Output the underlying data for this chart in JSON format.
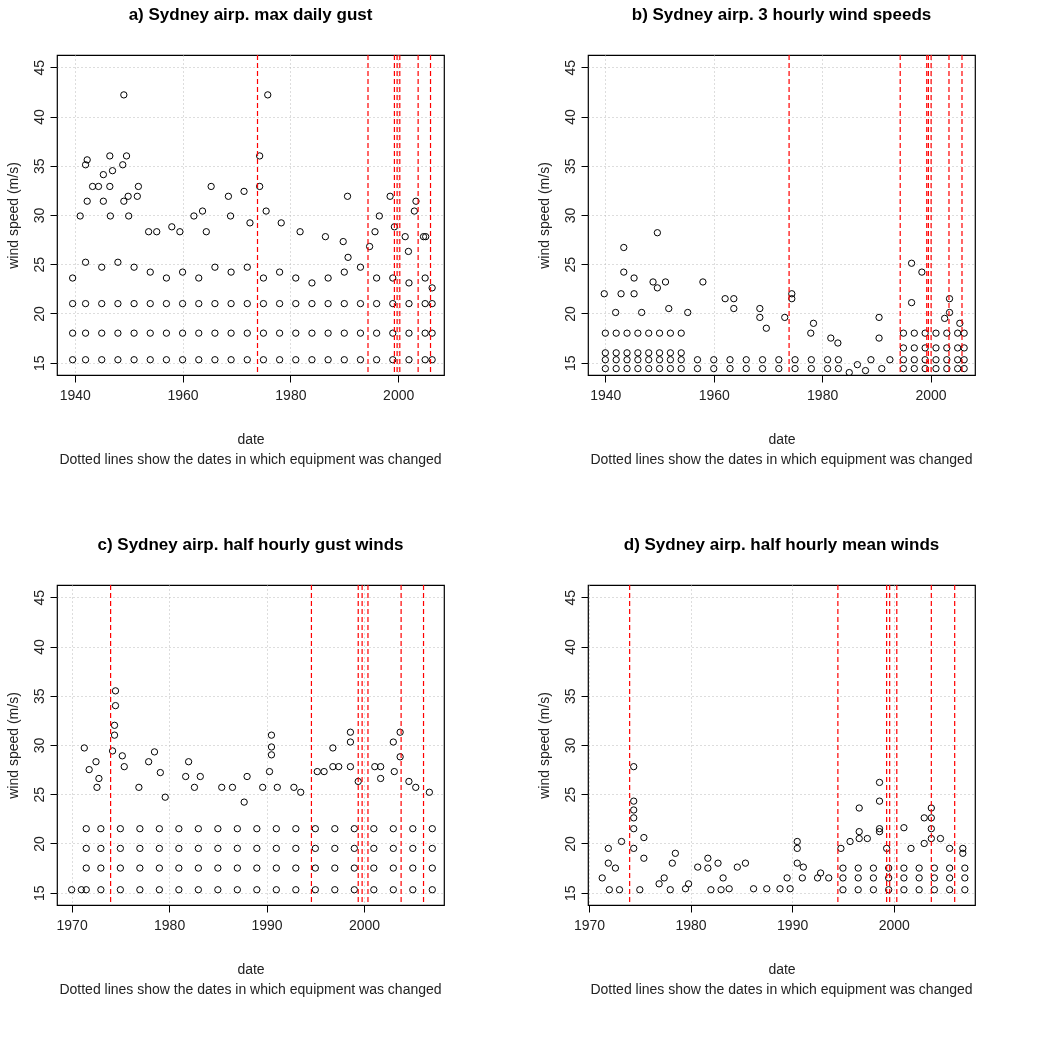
{
  "chart_data": [
    {
      "type": "scatter",
      "title": "a) Sydney airp. max daily gust",
      "xlabel": "date",
      "ylabel": "wind speed (m/s)",
      "annotations": [
        "Dotted lines show the dates in which equipment was changed"
      ],
      "marker": "circle",
      "grid": true,
      "xlim": [
        1936.7,
        2008.5
      ],
      "ylim": [
        13.75,
        46.25
      ],
      "xticks": [
        1940,
        1960,
        1980,
        2000
      ],
      "yticks": [
        15,
        20,
        25,
        30,
        35,
        40,
        45
      ],
      "x": [
        1949.1,
        1975.8,
        1942.3,
        1942.0,
        1946.5,
        1949.6,
        1974.3,
        1947.0,
        1948.9,
        1945.3,
        1943.3,
        1944.4,
        1946.5,
        1951.8,
        1965.3,
        1974.3,
        1945.3,
        1949.9,
        1951.6,
        1942.3,
        1949.1,
        1968.5,
        1971.4,
        1990.6,
        1998.5,
        2003.3,
        1941.0,
        1946.6,
        1950.0,
        1962.1,
        1963.7,
        1968.9,
        1975.5,
        1996.5,
        2003.0,
        1953.7,
        1955.2,
        1958.0,
        1959.5,
        1964.4,
        1972.5,
        1978.3,
        1981.8,
        1986.5,
        1995.7,
        1999.3,
        2001.3,
        2004.7,
        2005.1,
        1989.8,
        1990.7,
        1994.7,
        2001.9,
        1939.6,
        1939.6,
        1939.6,
        1939.6,
        1942,
        1942,
        1942,
        1942,
        1945,
        1945,
        1945,
        1945,
        1948,
        1948,
        1948,
        1948,
        1951,
        1951,
        1951,
        1951,
        1954,
        1954,
        1954,
        1954,
        1957,
        1957,
        1957,
        1957,
        1960,
        1960,
        1960,
        1960,
        1963,
        1963,
        1963,
        1963,
        1966,
        1966,
        1966,
        1966,
        1969,
        1969,
        1969,
        1969,
        1972,
        1972,
        1972,
        1972,
        1975,
        1975,
        1975,
        1975,
        1978,
        1978,
        1978,
        1978,
        1981,
        1981,
        1981,
        1981,
        1984,
        1984,
        1984,
        1984,
        1987,
        1987,
        1987,
        1987,
        1990,
        1990,
        1990,
        1990,
        1993,
        1993,
        1993,
        1993,
        1996,
        1996,
        1996,
        1996,
        1999,
        1999,
        1999,
        1999,
        2002,
        2002,
        2002,
        2002,
        2005,
        2005,
        2005,
        2005,
        2006.3,
        2006.3,
        2006.3,
        2006.3
      ],
      "series": [
        {
          "color": "#000000",
          "values": [
            42.2,
            42.2,
            35.6,
            35.1,
            36.0,
            36.0,
            36.0,
            34.5,
            35.1,
            34.1,
            32.9,
            32.9,
            32.9,
            32.9,
            32.9,
            32.9,
            31.4,
            31.9,
            31.9,
            31.4,
            31.4,
            31.9,
            32.4,
            31.9,
            31.9,
            31.4,
            29.9,
            29.9,
            29.9,
            29.9,
            30.4,
            29.9,
            30.4,
            29.9,
            30.4,
            28.3,
            28.3,
            28.8,
            28.3,
            28.3,
            29.2,
            29.2,
            28.3,
            27.8,
            28.3,
            28.8,
            27.8,
            27.8,
            27.8,
            27.3,
            25.7,
            26.8,
            26.3,
            15.3,
            18,
            21,
            23.6,
            15.3,
            18,
            21,
            25.2,
            15.3,
            18,
            21,
            24.7,
            15.3,
            18,
            21,
            25.2,
            15.3,
            18,
            21,
            24.7,
            15.3,
            18,
            21,
            24.2,
            15.3,
            18,
            21,
            23.6,
            15.3,
            18,
            21,
            24.2,
            15.3,
            18,
            21,
            23.6,
            15.3,
            18,
            21,
            24.7,
            15.3,
            18,
            21,
            24.2,
            15.3,
            18,
            21,
            24.7,
            15.3,
            18,
            21,
            23.6,
            15.3,
            18,
            21,
            24.2,
            15.3,
            18,
            21,
            23.6,
            15.3,
            18,
            21,
            23.1,
            15.3,
            18,
            21,
            23.6,
            15.3,
            18,
            21,
            24.2,
            15.3,
            18,
            21,
            24.7,
            15.3,
            18,
            21,
            23.6,
            15.3,
            18,
            21,
            23.6,
            15.3,
            18,
            21,
            23.1,
            15.3,
            18,
            21,
            23.6,
            15.3,
            18,
            21,
            22.6
          ]
        }
      ],
      "ref_lines": [
        {
          "axis": "x",
          "value": 1973.9,
          "color": "#ff0000",
          "line_style": "dashed"
        },
        {
          "axis": "x",
          "value": 1994.4,
          "color": "#ff0000",
          "line_style": "dashed"
        },
        {
          "axis": "x",
          "value": 1999.3,
          "color": "#ff0000",
          "line_style": "dashed"
        },
        {
          "axis": "x",
          "value": 1999.8,
          "color": "#ff0000",
          "line_style": "dashed"
        },
        {
          "axis": "x",
          "value": 2000.3,
          "color": "#ff0000",
          "line_style": "dashed"
        },
        {
          "axis": "x",
          "value": 2003.7,
          "color": "#ff0000",
          "line_style": "dashed"
        },
        {
          "axis": "x",
          "value": 2006.0,
          "color": "#ff0000",
          "line_style": "dashed"
        }
      ]
    },
    {
      "type": "scatter",
      "title": "b) Sydney airp. 3 hourly wind speeds",
      "xlabel": "date",
      "ylabel": "wind speed (m/s)",
      "annotations": [
        "Dotted lines show the dates in which equipment was changed"
      ],
      "marker": "circle",
      "grid": true,
      "xlim": [
        1936.8,
        2008.2
      ],
      "ylim": [
        13.75,
        46.25
      ],
      "xticks": [
        1940,
        1960,
        1980,
        2000
      ],
      "yticks": [
        15,
        20,
        25,
        30,
        35,
        40,
        45
      ],
      "x": [
        1949.6,
        1943.4,
        1943.4,
        1945.3,
        1948.8,
        1951.1,
        1958.0,
        1939.8,
        1942.9,
        1945.3,
        1949.6,
        1962.1,
        1963.7,
        1963.7,
        1968.5,
        1968.5,
        1974.4,
        1974.4,
        1941.9,
        1946.7,
        1951.7,
        1955.2,
        1973.1,
        1978.4,
        1990.5,
        1996.5,
        1998.4,
        1996.5,
        2003.5,
        2003.5,
        2005.4,
        2002.6,
        1981.6,
        1982.9,
        1990.5,
        1969.7,
        1977.9,
        1940,
        1940,
        1940,
        1940,
        1942,
        1942,
        1942,
        1942,
        1944,
        1944,
        1944,
        1944,
        1946,
        1946,
        1946,
        1946,
        1948,
        1948,
        1948,
        1948,
        1950,
        1950,
        1950,
        1950,
        1952,
        1952,
        1952,
        1952,
        1954,
        1954,
        1954,
        1954,
        1957,
        1957,
        1960,
        1960,
        1963,
        1963,
        1966,
        1966,
        1969,
        1969,
        1972,
        1972,
        1975,
        1975,
        1978,
        1978,
        1981,
        1981,
        1983,
        1983,
        1985,
        1986.5,
        1988,
        1989,
        1991,
        1992.5,
        1995,
        1995,
        1995,
        1995,
        1997,
        1997,
        1997,
        1997,
        1999,
        1999,
        1999,
        1999,
        2001,
        2001,
        2001,
        2001,
        2003,
        2003,
        2003,
        2003,
        2005,
        2005,
        2005,
        2005,
        2006.2,
        2006.2,
        2006.2,
        2006.2
      ],
      "series": [
        {
          "color": "#000000",
          "values": [
            28.2,
            26.7,
            24.2,
            23.6,
            23.2,
            23.2,
            23.2,
            22.0,
            22.0,
            22.0,
            22.6,
            21.5,
            21.5,
            20.5,
            20.5,
            19.6,
            22.0,
            21.5,
            20.1,
            20.1,
            20.5,
            20.1,
            19.6,
            19.0,
            19.6,
            25.1,
            24.2,
            21.1,
            21.5,
            20.1,
            19.0,
            19.5,
            17.5,
            17.0,
            17.5,
            18.5,
            18.0,
            14.4,
            15.3,
            16.0,
            18.0,
            14.4,
            15.3,
            16.0,
            18.0,
            14.4,
            15.3,
            16.0,
            18.0,
            14.4,
            15.3,
            16.0,
            18.0,
            14.4,
            15.3,
            16.0,
            18.0,
            14.4,
            15.3,
            16.0,
            18.0,
            14.4,
            15.3,
            16.0,
            18.0,
            14.4,
            15.3,
            16.0,
            18.0,
            14.4,
            15.3,
            14.4,
            15.3,
            14.4,
            15.3,
            14.4,
            15.3,
            14.4,
            15.3,
            14.4,
            15.3,
            14.4,
            15.3,
            14.4,
            15.3,
            14.4,
            15.3,
            14.4,
            15.3,
            14.0,
            14.8,
            14.2,
            15.3,
            14.4,
            15.3,
            14.4,
            15.3,
            16.5,
            18.0,
            14.4,
            15.3,
            16.5,
            18.0,
            14.4,
            15.3,
            16.5,
            18.0,
            14.4,
            15.3,
            16.5,
            18.0,
            14.4,
            15.3,
            16.5,
            18.0,
            14.4,
            15.3,
            16.5,
            18.0,
            14.4,
            15.3,
            16.5,
            18.0
          ]
        }
      ],
      "ref_lines": [
        {
          "axis": "x",
          "value": 1973.9,
          "color": "#ff0000",
          "line_style": "dashed"
        },
        {
          "axis": "x",
          "value": 1994.4,
          "color": "#ff0000",
          "line_style": "dashed"
        },
        {
          "axis": "x",
          "value": 1999.3,
          "color": "#ff0000",
          "line_style": "dashed"
        },
        {
          "axis": "x",
          "value": 1999.6,
          "color": "#ff0000",
          "line_style": "dashed"
        },
        {
          "axis": "x",
          "value": 2000.1,
          "color": "#ff0000",
          "line_style": "dashed"
        },
        {
          "axis": "x",
          "value": 2003.4,
          "color": "#ff0000",
          "line_style": "dashed"
        },
        {
          "axis": "x",
          "value": 2005.8,
          "color": "#ff0000",
          "line_style": "dashed"
        }
      ]
    },
    {
      "type": "scatter",
      "title": "c) Sydney airp. half hourly gust winds",
      "xlabel": "date",
      "ylabel": "wind speed (m/s)",
      "annotations": [
        "Dotted lines show the dates in which equipment was changed"
      ],
      "marker": "circle",
      "grid": true,
      "xlim": [
        1968.5,
        2008.2
      ],
      "ylim": [
        13.75,
        46.25
      ],
      "xticks": [
        1970,
        1980,
        1990,
        2000
      ],
      "yticks": [
        15,
        20,
        25,
        30,
        35,
        40,
        45
      ],
      "x": [
        1970.0,
        1971.0,
        1971.3,
        1974.5,
        1974.5,
        1974.4,
        1974.4,
        1974.2,
        1975.2,
        1975.4,
        1972.5,
        1971.8,
        1972.8,
        1972.6,
        1978.5,
        1977.9,
        1976.9,
        1979.1,
        1979.6,
        1982.0,
        1981.7,
        1983.2,
        1982.6,
        1985.4,
        1986.5,
        1988.0,
        1987.7,
        1990.5,
        1990.5,
        1990.5,
        1990.3,
        1989.6,
        1991.1,
        1992.8,
        1993.5,
        1995.2,
        1995.9,
        1996.8,
        1996.8,
        1997.4,
        1998.6,
        1998.6,
        1998.6,
        1999.4,
        2001.1,
        2001.7,
        2001.7,
        2003.0,
        2003.7,
        2003.7,
        2003.1,
        2004.6,
        2005.3,
        2006.7,
        1971.5,
        1971.5,
        1971.5,
        1971.5,
        1973,
        1973,
        1973,
        1973,
        1975,
        1975,
        1975,
        1975,
        1977,
        1977,
        1977,
        1977,
        1979,
        1979,
        1979,
        1979,
        1981,
        1981,
        1981,
        1981,
        1983,
        1983,
        1983,
        1983,
        1985,
        1985,
        1985,
        1985,
        1987,
        1987,
        1987,
        1987,
        1989,
        1989,
        1989,
        1989,
        1991,
        1991,
        1991,
        1991,
        1993,
        1993,
        1993,
        1993,
        1995,
        1995,
        1995,
        1995,
        1997,
        1997,
        1997,
        1997,
        1999,
        1999,
        1999,
        1999,
        2001,
        2001,
        2001,
        2001,
        2003,
        2003,
        2003,
        2003,
        2005,
        2005,
        2005,
        2005,
        2007,
        2007,
        2007,
        2007
      ],
      "series": [
        {
          "color": "#000000",
          "values": [
            15.3,
            15.3,
            29.7,
            35.5,
            34.0,
            32.0,
            31.0,
            29.4,
            28.9,
            27.8,
            28.3,
            27.5,
            26.6,
            25.7,
            29.3,
            28.3,
            25.7,
            27.2,
            24.7,
            28.3,
            26.8,
            26.8,
            25.7,
            25.7,
            25.7,
            26.8,
            24.2,
            31.0,
            29.8,
            29.0,
            27.3,
            25.7,
            25.7,
            25.7,
            25.2,
            27.3,
            27.3,
            29.7,
            27.8,
            27.8,
            31.3,
            30.3,
            27.8,
            26.3,
            27.8,
            27.8,
            26.6,
            30.3,
            31.3,
            28.8,
            27.3,
            26.3,
            25.7,
            25.2,
            15.3,
            17.5,
            19.5,
            21.5,
            15.3,
            17.5,
            19.5,
            21.5,
            15.3,
            17.5,
            19.5,
            21.5,
            15.3,
            17.5,
            19.5,
            21.5,
            15.3,
            17.5,
            19.5,
            21.5,
            15.3,
            17.5,
            19.5,
            21.5,
            15.3,
            17.5,
            19.5,
            21.5,
            15.3,
            17.5,
            19.5,
            21.5,
            15.3,
            17.5,
            19.5,
            21.5,
            15.3,
            17.5,
            19.5,
            21.5,
            15.3,
            17.5,
            19.5,
            21.5,
            15.3,
            17.5,
            19.5,
            21.5,
            15.3,
            17.5,
            19.5,
            21.5,
            15.3,
            17.5,
            19.5,
            21.5,
            15.3,
            17.5,
            19.5,
            21.5,
            15.3,
            17.5,
            19.5,
            21.5,
            15.3,
            17.5,
            19.5,
            21.5,
            15.3,
            17.5,
            19.5,
            21.5,
            15.3,
            17.5,
            19.5,
            21.5
          ]
        }
      ],
      "ref_lines": [
        {
          "axis": "x",
          "value": 1974.0,
          "color": "#ff0000",
          "line_style": "dashed"
        },
        {
          "axis": "x",
          "value": 1994.6,
          "color": "#ff0000",
          "line_style": "dashed"
        },
        {
          "axis": "x",
          "value": 1999.4,
          "color": "#ff0000",
          "line_style": "dashed"
        },
        {
          "axis": "x",
          "value": 1999.8,
          "color": "#ff0000",
          "line_style": "dashed"
        },
        {
          "axis": "x",
          "value": 2000.4,
          "color": "#ff0000",
          "line_style": "dashed"
        },
        {
          "axis": "x",
          "value": 2003.8,
          "color": "#ff0000",
          "line_style": "dashed"
        },
        {
          "axis": "x",
          "value": 2006.1,
          "color": "#ff0000",
          "line_style": "dashed"
        }
      ]
    },
    {
      "type": "scatter",
      "title": "d) Sydney airp. half hourly mean winds",
      "xlabel": "date",
      "ylabel": "wind speed (m/s)",
      "annotations": [
        "Dotted lines show the dates in which equipment was changed"
      ],
      "marker": "circle",
      "grid": true,
      "xlim": [
        1969.9,
        2008.0
      ],
      "ylim": [
        13.75,
        46.25
      ],
      "xticks": [
        1970,
        1980,
        1990,
        2000
      ],
      "yticks": [
        15,
        20,
        25,
        30,
        35,
        40,
        45
      ],
      "x": [
        1974.4,
        1974.4,
        1974.4,
        1974.4,
        1974.4,
        1974.4,
        1975.4,
        1975.4,
        1971.9,
        1973.2,
        1971.9,
        1971.3,
        1972.6,
        1978.5,
        1978.2,
        1977.4,
        1976.9,
        1979.8,
        1981.7,
        1981.7,
        1980.7,
        1982.7,
        1983.2,
        1984.6,
        1985.4,
        1979.5,
        1983.8,
        1986.2,
        1987.5,
        1988.8,
        1989.8,
        1990.5,
        1990.5,
        1990.5,
        1991.1,
        1989.5,
        1991.0,
        1992.8,
        1992.5,
        1993.6,
        1996.6,
        1996.6,
        1996.6,
        1997.4,
        1995.7,
        1994.8,
        1998.6,
        1998.6,
        1998.6,
        1998.6,
        1999.3,
        2001.0,
        2001.7,
        2003.0,
        2003.7,
        2003.7,
        2003.7,
        2003.0,
        2003.7,
        2004.6,
        2005.5,
        2006.8,
        2006.8,
        1972,
        1973,
        1975,
        1978,
        1982,
        1983,
        1995,
        1995,
        1995,
        1996.5,
        1996.5,
        1996.5,
        1998,
        1998,
        1998,
        1999.5,
        1999.5,
        1999.5,
        2001,
        2001,
        2001,
        2002.5,
        2002.5,
        2002.5,
        2004,
        2004,
        2004,
        2005.5,
        2005.5,
        2005.5,
        2007,
        2007,
        2007
      ],
      "series": [
        {
          "color": "#000000",
          "values": [
            27.8,
            24.3,
            23.4,
            22.6,
            21.5,
            19.5,
            20.6,
            18.5,
            19.5,
            20.2,
            18.0,
            16.5,
            17.5,
            19.0,
            18.0,
            16.5,
            15.9,
            15.9,
            18.5,
            17.5,
            17.6,
            18.0,
            16.5,
            17.6,
            18.0,
            15.4,
            15.4,
            15.4,
            15.4,
            15.4,
            15.4,
            20.2,
            19.5,
            18.0,
            17.6,
            16.5,
            16.5,
            17.0,
            16.5,
            16.5,
            23.6,
            21.2,
            20.5,
            20.5,
            20.2,
            19.5,
            26.2,
            24.3,
            21.5,
            21.2,
            19.5,
            21.6,
            19.5,
            22.6,
            23.6,
            22.6,
            21.5,
            20.0,
            20.5,
            20.5,
            19.5,
            19.5,
            19.0,
            15.3,
            15.3,
            15.3,
            15.3,
            15.3,
            15.3,
            15.3,
            16.5,
            17.5,
            15.3,
            16.5,
            17.5,
            15.3,
            16.5,
            17.5,
            15.3,
            16.5,
            17.5,
            15.3,
            16.5,
            17.5,
            15.3,
            16.5,
            17.5,
            15.3,
            16.5,
            17.5,
            15.3,
            16.5,
            17.5,
            15.3,
            16.5,
            17.5
          ]
        }
      ],
      "ref_lines": [
        {
          "axis": "x",
          "value": 1974.0,
          "color": "#ff0000",
          "line_style": "dashed"
        },
        {
          "axis": "x",
          "value": 1994.5,
          "color": "#ff0000",
          "line_style": "dashed"
        },
        {
          "axis": "x",
          "value": 1999.3,
          "color": "#ff0000",
          "line_style": "dashed"
        },
        {
          "axis": "x",
          "value": 1999.6,
          "color": "#ff0000",
          "line_style": "dashed"
        },
        {
          "axis": "x",
          "value": 2000.3,
          "color": "#ff0000",
          "line_style": "dashed"
        },
        {
          "axis": "x",
          "value": 2003.7,
          "color": "#ff0000",
          "line_style": "dashed"
        },
        {
          "axis": "x",
          "value": 2006.0,
          "color": "#ff0000",
          "line_style": "dashed"
        }
      ]
    }
  ]
}
